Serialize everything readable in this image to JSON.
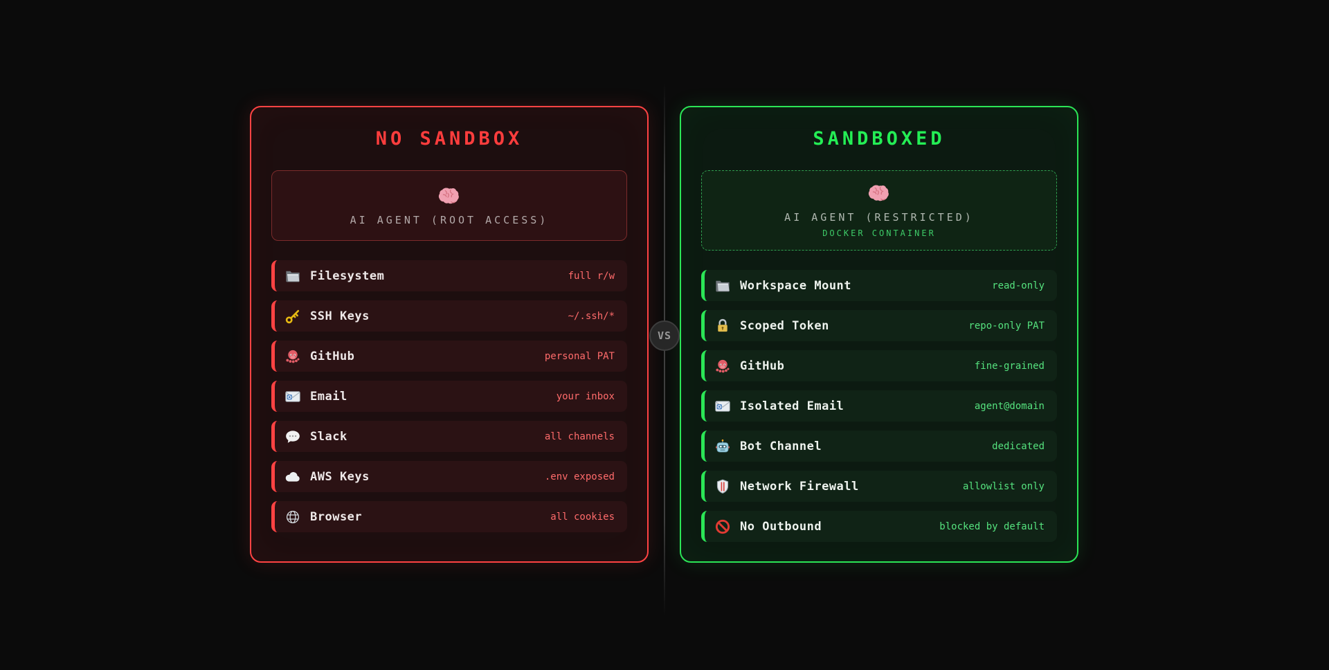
{
  "page": {
    "background": "#0b0b0b",
    "divider_color": "#484848"
  },
  "vs_badge": {
    "label": "VS",
    "background": "#272727",
    "text_color": "#989898"
  },
  "left_panel": {
    "title": "NO SANDBOX",
    "accent_color": "#ff4343",
    "title_color": "#ff3d3d",
    "value_color": "#ff6b6b",
    "agent": {
      "icon": "brain-icon",
      "label": "AI AGENT (ROOT ACCESS)"
    },
    "items": [
      {
        "icon": "folder-icon",
        "label": "Filesystem",
        "value": "full r/w"
      },
      {
        "icon": "key-icon",
        "label": "SSH Keys",
        "value": "~/.ssh/*"
      },
      {
        "icon": "octopus-icon",
        "label": "GitHub",
        "value": "personal PAT"
      },
      {
        "icon": "email-icon",
        "label": "Email",
        "value": "your inbox"
      },
      {
        "icon": "speech-bubble-icon",
        "label": "Slack",
        "value": "all channels"
      },
      {
        "icon": "cloud-icon",
        "label": "AWS Keys",
        "value": ".env exposed"
      },
      {
        "icon": "globe-icon",
        "label": "Browser",
        "value": "all cookies"
      }
    ]
  },
  "right_panel": {
    "title": "SANDBOXED",
    "accent_color": "#2be556",
    "title_color": "#24ee55",
    "value_color": "#55e27e",
    "agent": {
      "icon": "brain-icon",
      "label": "AI AGENT (RESTRICTED)",
      "sublabel": "DOCKER CONTAINER"
    },
    "items": [
      {
        "icon": "open-folder-icon",
        "label": "Workspace Mount",
        "value": "read-only"
      },
      {
        "icon": "lock-icon",
        "label": "Scoped Token",
        "value": "repo-only PAT"
      },
      {
        "icon": "octopus-icon",
        "label": "GitHub",
        "value": "fine-grained"
      },
      {
        "icon": "email-icon",
        "label": "Isolated Email",
        "value": "agent@domain"
      },
      {
        "icon": "robot-icon",
        "label": "Bot Channel",
        "value": "dedicated"
      },
      {
        "icon": "shield-icon",
        "label": "Network Firewall",
        "value": "allowlist only"
      },
      {
        "icon": "no-entry-icon",
        "label": "No Outbound",
        "value": "blocked by default"
      }
    ]
  }
}
